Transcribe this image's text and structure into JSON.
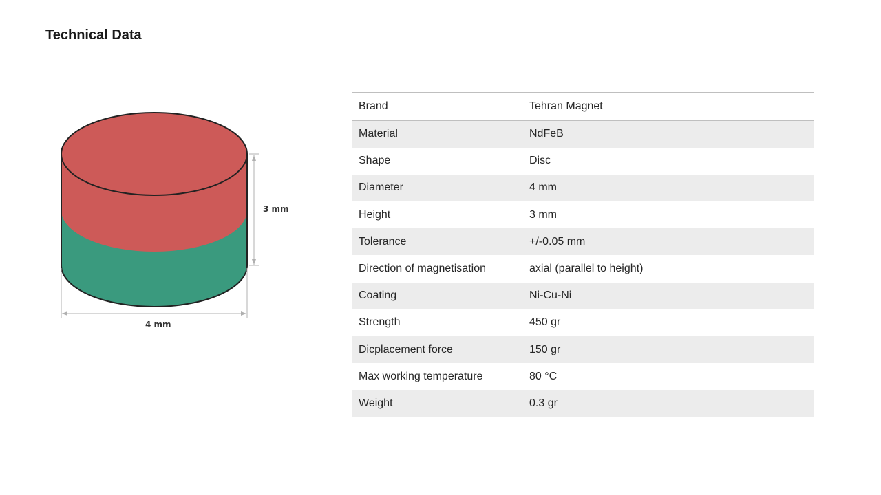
{
  "header": {
    "title": "Technical Data"
  },
  "figure": {
    "height_label": "3 mm",
    "width_label": "4 mm",
    "colors": {
      "top_pole": "#cd5a58",
      "bottom_pole": "#3a9a7e",
      "outline": "#222222",
      "dimension_line": "#b0b0b0"
    }
  },
  "specs": [
    {
      "label": "Brand",
      "value": "Tehran Magnet"
    },
    {
      "label": "Material",
      "value": "NdFeB"
    },
    {
      "label": "Shape",
      "value": "Disc"
    },
    {
      "label": "Diameter",
      "value": "4 mm"
    },
    {
      "label": "Height",
      "value": "3 mm"
    },
    {
      "label": "Tolerance",
      "value": "+/-0.05 mm"
    },
    {
      "label": "Direction of magnetisation",
      "value": "axial (parallel to height)"
    },
    {
      "label": "Coating",
      "value": "Ni-Cu-Ni"
    },
    {
      "label": "Strength",
      "value": "450 gr"
    },
    {
      "label": "Dicplacement force",
      "value": "150 gr"
    },
    {
      "label": "Max working temperature",
      "value": "80 °C"
    },
    {
      "label": "Weight",
      "value": "0.3 gr"
    }
  ]
}
